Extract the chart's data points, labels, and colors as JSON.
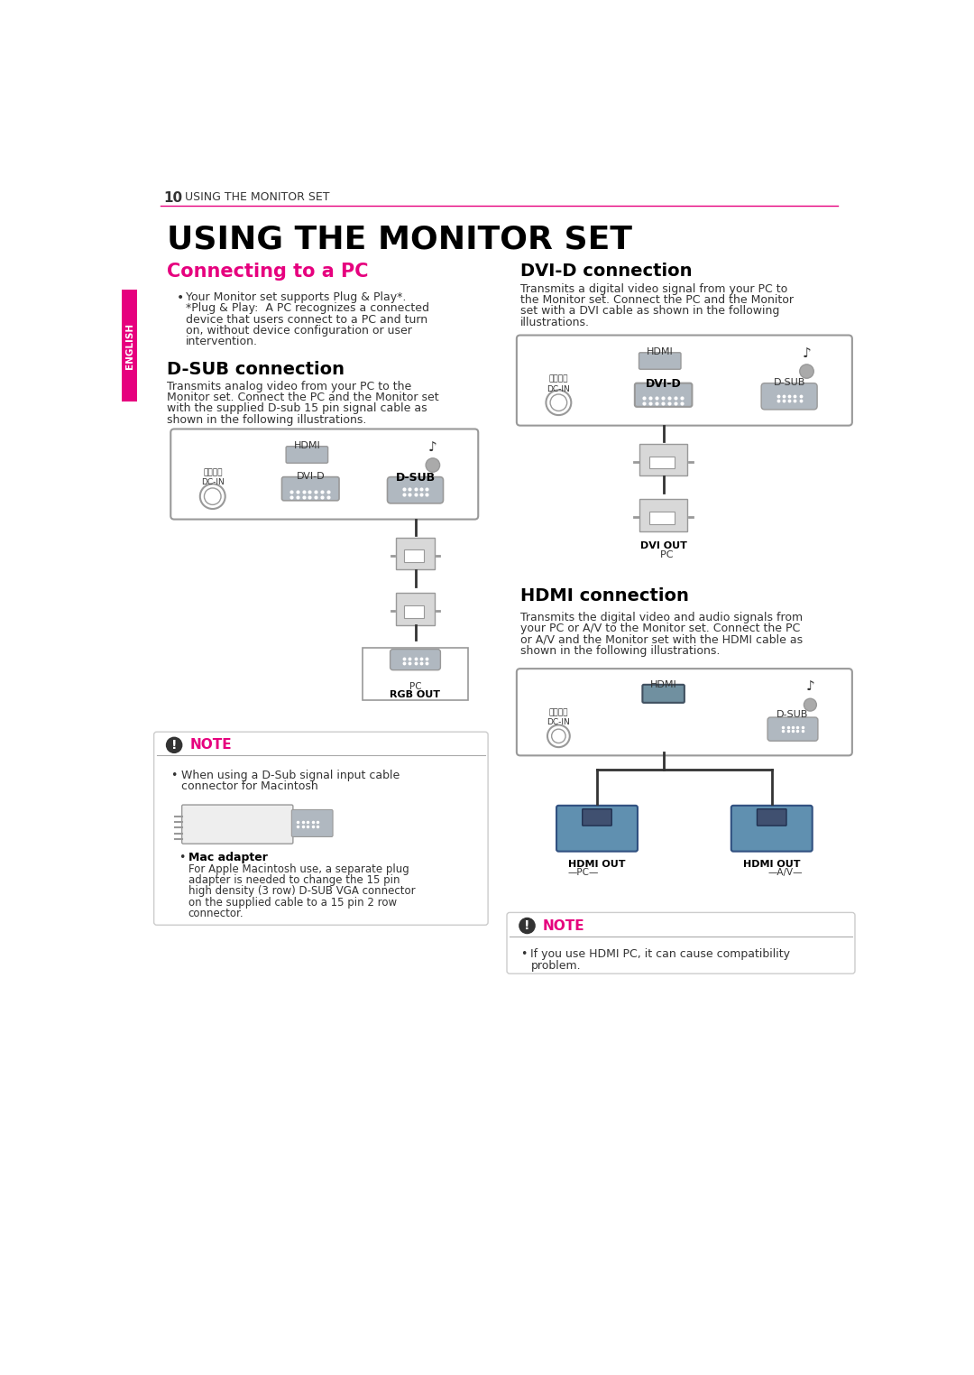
{
  "page_number": "10",
  "page_header": "USING THE MONITOR SET",
  "main_title": "USING THE MONITOR SET",
  "pink_color": "#E6007E",
  "dark_color": "#333333",
  "light_gray": "#AAAAAA",
  "border_gray": "#999999",
  "connector_gray": "#B0B8C0",
  "bg_white": "#FFFFFF",
  "note_bg": "#F8F8F8",
  "section1_title": "Connecting to a PC",
  "section1_bullet": "Your Monitor set supports Plug & Play*.\n*Plug & Play:  A PC recognizes a connected\ndevice that users connect to a PC and turn\non, without device configuration or user\nintervention.",
  "section2_title": "D-SUB connection",
  "section2_body": "Transmits analog video from your PC to the\nMonitor set. Connect the PC and the Monitor set\nwith the supplied D-sub 15 pin signal cable as\nshown in the following illustrations.",
  "section3_title": "DVI-D connection",
  "section3_body": "Transmits a digital video signal from your PC to\nthe Monitor set. Connect the PC and the Monitor\nset with a DVI cable as shown in the following\nillustrations.",
  "section4_title": "HDMI connection",
  "section4_body": "Transmits the digital video and audio signals from\nyour PC or A/V to the Monitor set. Connect the PC\nor A/V and the Monitor set with the HDMI cable as\nshown in the following illustrations.",
  "note1_title": "NOTE",
  "note1_bullet1": "When using a D-Sub signal input cable\nconnector for Macintosh",
  "note1_mac_adapter": "Mac adapter",
  "note1_mac_text": "For Apple Macintosh use, a separate plug\nadapter is needed to change the 15 pin\nhigh density (3 row) D-SUB VGA connector\non the supplied cable to a 15 pin 2 row\nconnector.",
  "note2_title": "NOTE",
  "note2_bullet": "If you use HDMI PC, it can cause compatibility\nproblem.",
  "english_tab": "ENGLISH",
  "label_hdmi": "HDMI",
  "label_dvid": "DVI-D",
  "label_dsub": "D-SUB",
  "label_dcin": "电源输入\nDC-IN",
  "label_rgb_out": "RGB OUT",
  "label_pc1": "PC",
  "label_dvi_out": "DVI OUT",
  "label_pc2": "PC",
  "label_hdmi_out_pc": "HDMI OUT",
  "label_hdmi_out_av": "HDMI OUT",
  "label_pc3": "PC",
  "label_av": "A/V"
}
